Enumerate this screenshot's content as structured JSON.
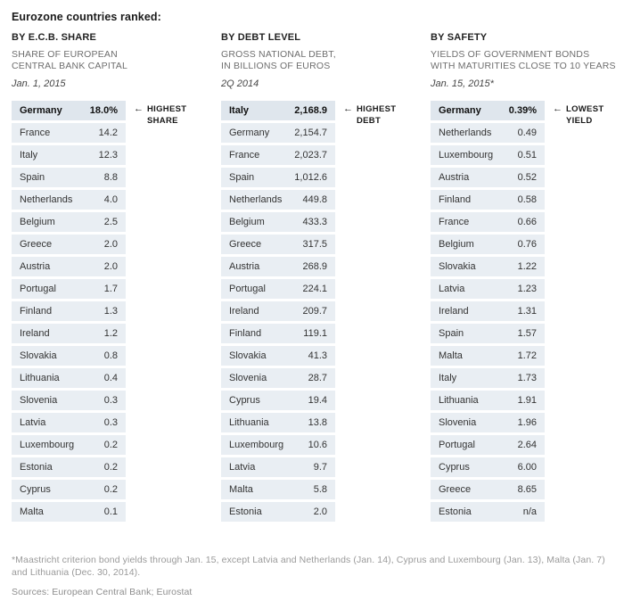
{
  "title": "Eurozone countries ranked:",
  "columns": [
    {
      "heading": "BY E.C.B. SHARE",
      "description": "SHARE OF EUROPEAN\nCENTRAL BANK CAPITAL",
      "date": "Jan. 1, 2015",
      "annotation": {
        "arrow": "←",
        "label": "HIGHEST\nSHARE"
      },
      "rows": [
        [
          "Germany",
          "18.0%"
        ],
        [
          "France",
          "14.2"
        ],
        [
          "Italy",
          "12.3"
        ],
        [
          "Spain",
          "8.8"
        ],
        [
          "Netherlands",
          "4.0"
        ],
        [
          "Belgium",
          "2.5"
        ],
        [
          "Greece",
          "2.0"
        ],
        [
          "Austria",
          "2.0"
        ],
        [
          "Portugal",
          "1.7"
        ],
        [
          "Finland",
          "1.3"
        ],
        [
          "Ireland",
          "1.2"
        ],
        [
          "Slovakia",
          "0.8"
        ],
        [
          "Lithuania",
          "0.4"
        ],
        [
          "Slovenia",
          "0.3"
        ],
        [
          "Latvia",
          "0.3"
        ],
        [
          "Luxembourg",
          "0.2"
        ],
        [
          "Estonia",
          "0.2"
        ],
        [
          "Cyprus",
          "0.2"
        ],
        [
          "Malta",
          "0.1"
        ]
      ]
    },
    {
      "heading": "BY DEBT LEVEL",
      "description": "GROSS NATIONAL DEBT,\nIN BILLIONS OF EUROS",
      "date": "2Q 2014",
      "annotation": {
        "arrow": "←",
        "label": "HIGHEST\nDEBT"
      },
      "rows": [
        [
          "Italy",
          "2,168.9"
        ],
        [
          "Germany",
          "2,154.7"
        ],
        [
          "France",
          "2,023.7"
        ],
        [
          "Spain",
          "1,012.6"
        ],
        [
          "Netherlands",
          "449.8"
        ],
        [
          "Belgium",
          "433.3"
        ],
        [
          "Greece",
          "317.5"
        ],
        [
          "Austria",
          "268.9"
        ],
        [
          "Portugal",
          "224.1"
        ],
        [
          "Ireland",
          "209.7"
        ],
        [
          "Finland",
          "119.1"
        ],
        [
          "Slovakia",
          "41.3"
        ],
        [
          "Slovenia",
          "28.7"
        ],
        [
          "Cyprus",
          "19.4"
        ],
        [
          "Lithuania",
          "13.8"
        ],
        [
          "Luxembourg",
          "10.6"
        ],
        [
          "Latvia",
          "9.7"
        ],
        [
          "Malta",
          "5.8"
        ],
        [
          "Estonia",
          "2.0"
        ]
      ]
    },
    {
      "heading": "BY SAFETY",
      "description": "YIELDS OF GOVERNMENT BONDS\nWITH MATURITIES CLOSE TO 10 YEARS",
      "date": "Jan. 15, 2015*",
      "annotation": {
        "arrow": "←",
        "label": "LOWEST\nYIELD"
      },
      "rows": [
        [
          "Germany",
          "0.39%"
        ],
        [
          "Netherlands",
          "0.49"
        ],
        [
          "Luxembourg",
          "0.51"
        ],
        [
          "Austria",
          "0.52"
        ],
        [
          "Finland",
          "0.58"
        ],
        [
          "France",
          "0.66"
        ],
        [
          "Belgium",
          "0.76"
        ],
        [
          "Slovakia",
          "1.22"
        ],
        [
          "Latvia",
          "1.23"
        ],
        [
          "Ireland",
          "1.31"
        ],
        [
          "Spain",
          "1.57"
        ],
        [
          "Malta",
          "1.72"
        ],
        [
          "Italy",
          "1.73"
        ],
        [
          "Lithuania",
          "1.91"
        ],
        [
          "Slovenia",
          "1.96"
        ],
        [
          "Portugal",
          "2.64"
        ],
        [
          "Cyprus",
          "6.00"
        ],
        [
          "Greece",
          "8.65"
        ],
        [
          "Estonia",
          "n/a"
        ]
      ]
    }
  ],
  "footnote": "*Maastricht criterion bond yields through Jan. 15, except Latvia and Netherlands (Jan. 14), Cyprus and Luxembourg (Jan. 13), Malta (Jan. 7) and Lithuania (Dec. 30, 2014).",
  "sources": "Sources: European Central Bank; Eurostat",
  "colors": {
    "row_background": "#e9eef3",
    "highlight_row_background": "#dfe6ed",
    "row_text": "#333333",
    "heading_text": "#222222",
    "description_text": "#6e6e6e",
    "footnote_text": "#9a9a9a"
  },
  "chart_data": [
    {
      "type": "table",
      "title": "BY E.C.B. SHARE",
      "subtitle": "SHARE OF EUROPEAN CENTRAL BANK CAPITAL",
      "date": "Jan. 1, 2015",
      "unit": "percent of ECB capital",
      "annotation": "HIGHEST SHARE (Germany)",
      "categories": [
        "Germany",
        "France",
        "Italy",
        "Spain",
        "Netherlands",
        "Belgium",
        "Greece",
        "Austria",
        "Portugal",
        "Finland",
        "Ireland",
        "Slovakia",
        "Lithuania",
        "Slovenia",
        "Latvia",
        "Luxembourg",
        "Estonia",
        "Cyprus",
        "Malta"
      ],
      "values": [
        18.0,
        14.2,
        12.3,
        8.8,
        4.0,
        2.5,
        2.0,
        2.0,
        1.7,
        1.3,
        1.2,
        0.8,
        0.4,
        0.3,
        0.3,
        0.2,
        0.2,
        0.2,
        0.1
      ]
    },
    {
      "type": "table",
      "title": "BY DEBT LEVEL",
      "subtitle": "GROSS NATIONAL DEBT, IN BILLIONS OF EUROS",
      "date": "2Q 2014",
      "unit": "billions of euros",
      "annotation": "HIGHEST DEBT (Italy)",
      "categories": [
        "Italy",
        "Germany",
        "France",
        "Spain",
        "Netherlands",
        "Belgium",
        "Greece",
        "Austria",
        "Portugal",
        "Ireland",
        "Finland",
        "Slovakia",
        "Slovenia",
        "Cyprus",
        "Lithuania",
        "Luxembourg",
        "Latvia",
        "Malta",
        "Estonia"
      ],
      "values": [
        2168.9,
        2154.7,
        2023.7,
        1012.6,
        449.8,
        433.3,
        317.5,
        268.9,
        224.1,
        209.7,
        119.1,
        41.3,
        28.7,
        19.4,
        13.8,
        10.6,
        9.7,
        5.8,
        2.0
      ]
    },
    {
      "type": "table",
      "title": "BY SAFETY",
      "subtitle": "YIELDS OF GOVERNMENT BONDS WITH MATURITIES CLOSE TO 10 YEARS",
      "date": "Jan. 15, 2015*",
      "unit": "percent yield",
      "annotation": "LOWEST YIELD (Germany)",
      "categories": [
        "Germany",
        "Netherlands",
        "Luxembourg",
        "Austria",
        "Finland",
        "France",
        "Belgium",
        "Slovakia",
        "Latvia",
        "Ireland",
        "Spain",
        "Malta",
        "Italy",
        "Lithuania",
        "Slovenia",
        "Portugal",
        "Cyprus",
        "Greece",
        "Estonia"
      ],
      "values": [
        0.39,
        0.49,
        0.51,
        0.52,
        0.58,
        0.66,
        0.76,
        1.22,
        1.23,
        1.31,
        1.57,
        1.72,
        1.73,
        1.91,
        1.96,
        2.64,
        6.0,
        8.65,
        null
      ]
    }
  ]
}
